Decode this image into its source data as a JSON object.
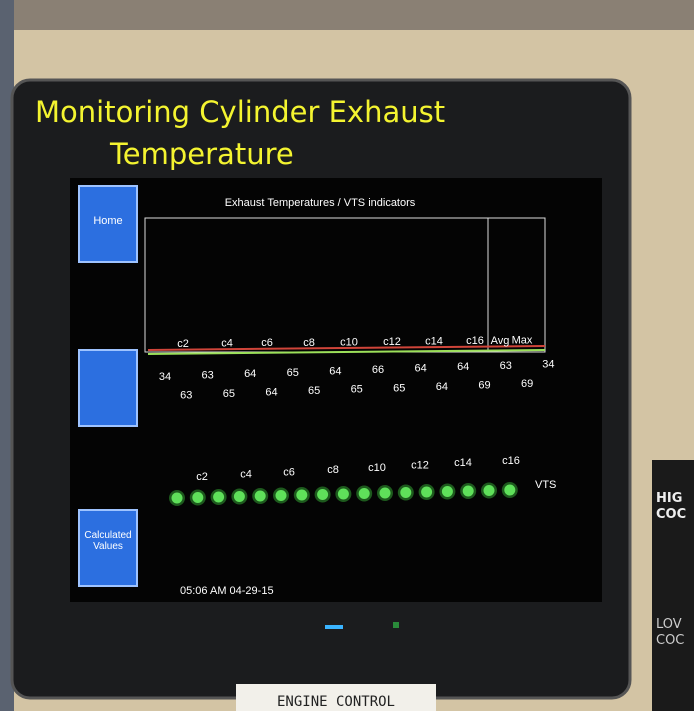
{
  "overlay_title": {
    "line1": "Monitoring Cylinder Exhaust",
    "line2": "Temperature"
  },
  "buttons": {
    "home": "Home",
    "calculated": "Calculated Values"
  },
  "screen_title": "Exhaust Temperatures / VTS indicators",
  "chart_labels": [
    "c2",
    "c4",
    "c6",
    "c8",
    "c10",
    "c12",
    "c14",
    "c16",
    "Avg",
    "Max"
  ],
  "readings": [
    "34",
    "63",
    "63",
    "65",
    "64",
    "64",
    "65",
    "65",
    "64",
    "65",
    "66",
    "65",
    "64",
    "64",
    "64",
    "69",
    "63",
    "69",
    "34"
  ],
  "vts_labels": [
    "c2",
    "c4",
    "c6",
    "c8",
    "c10",
    "c12",
    "c14",
    "c16"
  ],
  "vts_caption": "VTS",
  "timestamp": "05:06 AM 04-29-15",
  "panel_label": "ENGINE CONTROL",
  "side_sign": [
    "HIG",
    "COC",
    "LOV",
    "COC"
  ]
}
